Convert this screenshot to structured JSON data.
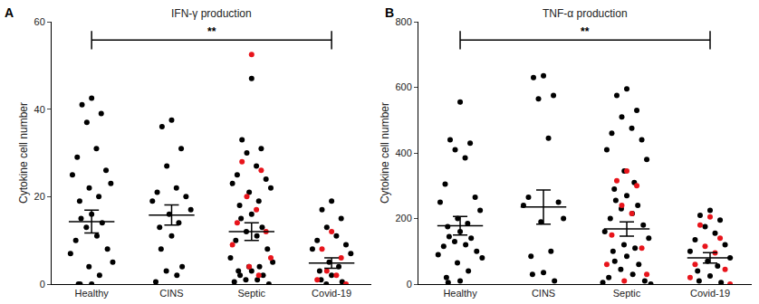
{
  "chart_data": [
    {
      "type": "scatter",
      "panel": "A",
      "title": "IFN-γ production",
      "y_label": "Cytokine cell number",
      "categories": [
        "Healthy",
        "CINS",
        "Septic",
        "Covid-19"
      ],
      "series": [
        {
          "color": "#000000",
          "values": [
            [
              42.5,
              41,
              39,
              37,
              31,
              29,
              26,
              25,
              23,
              22,
              20,
              19,
              16,
              15,
              14,
              13,
              11,
              10,
              8,
              7,
              5,
              4,
              2,
              0,
              0,
              0
            ],
            [
              37.5,
              36,
              31,
              27,
              22,
              21,
              20,
              19,
              17,
              16,
              14,
              13,
              11,
              8,
              4,
              3,
              2,
              0.5
            ],
            [
              47,
              33,
              31,
              30,
              27,
              25,
              24,
              23,
              22,
              21,
              19,
              18,
              16,
              15,
              13,
              12,
              11,
              10,
              8,
              6,
              5,
              4,
              4,
              3,
              3,
              2,
              2,
              1,
              1,
              0.5,
              0
            ],
            [
              19,
              17,
              15,
              13,
              11,
              10,
              9,
              8,
              7,
              5,
              4,
              3,
              2,
              1,
              0.5,
              0
            ]
          ]
        },
        {
          "color": "#e8141b",
          "values": [
            [],
            [],
            [
              52.5,
              28,
              26,
              20,
              17,
              14,
              12,
              9,
              6,
              4,
              2
            ],
            [
              12,
              8,
              6,
              3,
              2,
              1,
              0
            ]
          ]
        }
      ],
      "mean": [
        14.3,
        15.8,
        12,
        4.8
      ],
      "error": [
        2.6,
        2.3,
        2.0,
        1.2
      ],
      "ylim": [
        0,
        60
      ],
      "yticks": [
        0,
        20,
        40,
        60
      ],
      "grid": false,
      "annotations": [
        {
          "text": "**",
          "from": "Healthy",
          "to": "Covid-19"
        }
      ]
    },
    {
      "type": "scatter",
      "panel": "B",
      "title": "TNF-α production",
      "y_label": "Cytokine cell number",
      "categories": [
        "Healthy",
        "CINS",
        "Septic",
        "Covid-19"
      ],
      "series": [
        {
          "color": "#000000",
          "values": [
            [
              555,
              440,
              430,
              410,
              385,
              305,
              265,
              250,
              225,
              200,
              185,
              175,
              160,
              145,
              140,
              130,
              120,
              115,
              100,
              90,
              80,
              65,
              40,
              20,
              10,
              5
            ],
            [
              635,
              630,
              575,
              565,
              445,
              265,
              250,
              240,
              200,
              190,
              100,
              85,
              35,
              30,
              10
            ],
            [
              595,
              575,
              530,
              510,
              475,
              460,
              440,
              410,
              380,
              345,
              310,
              290,
              270,
              255,
              240,
              230,
              215,
              200,
              180,
              160,
              140,
              120,
              110,
              100,
              85,
              70,
              60,
              45,
              30,
              20,
              10,
              5,
              0
            ],
            [
              225,
              210,
              195,
              175,
              155,
              135,
              120,
              100,
              80,
              70,
              55,
              40,
              25,
              10,
              5
            ]
          ]
        },
        {
          "color": "#e8141b",
          "values": [
            [],
            [],
            [
              345,
              315,
              300,
              240,
              215,
              150,
              110,
              60,
              30,
              10
            ],
            [
              205,
              180,
              140,
              115,
              95,
              60,
              45,
              20,
              0
            ]
          ]
        }
      ],
      "mean": [
        178,
        235,
        168,
        80
      ],
      "error": [
        28,
        52,
        22,
        16
      ],
      "ylim": [
        0,
        800
      ],
      "yticks": [
        0,
        200,
        400,
        600,
        800
      ],
      "grid": false,
      "annotations": [
        {
          "text": "**",
          "from": "Healthy",
          "to": "Covid-19"
        }
      ]
    }
  ]
}
